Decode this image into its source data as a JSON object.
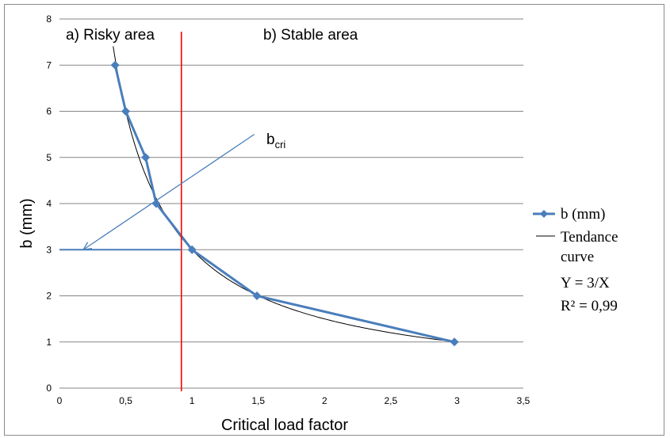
{
  "chart_data": {
    "type": "line",
    "xlabel": "Critical load factor",
    "ylabel": "b (mm)",
    "xlim": [
      0,
      3.5
    ],
    "ylim": [
      0,
      8
    ],
    "x_ticks": [
      "0",
      "0,5",
      "1",
      "1,5",
      "2",
      "2,5",
      "3",
      "3,5"
    ],
    "y_ticks": [
      "0",
      "1",
      "2",
      "3",
      "4",
      "5",
      "6",
      "7",
      "8"
    ],
    "grid": "horizontal",
    "series": [
      {
        "name": "b (mm)",
        "color": "#4a7ebb",
        "marker": "diamond",
        "points": [
          {
            "x": 0.42,
            "y": 7
          },
          {
            "x": 0.5,
            "y": 6
          },
          {
            "x": 0.65,
            "y": 5
          },
          {
            "x": 0.73,
            "y": 4
          },
          {
            "x": 1.0,
            "y": 3
          },
          {
            "x": 1.49,
            "y": 2
          },
          {
            "x": 2.98,
            "y": 1
          }
        ]
      }
    ],
    "trend": {
      "name": "Tendance curve",
      "equation": "Y = 3/X",
      "r2": "R² = 0,99",
      "color": "#000000"
    },
    "critical_line": {
      "x": 0.92,
      "color": "#ff0000"
    },
    "bcri_arrow": {
      "from": [
        1.47,
        5.5
      ],
      "to": [
        0.18,
        3.0
      ],
      "horizontal_y": 3,
      "color": "#4a7ebb"
    },
    "annotations": {
      "risky": "a) Risky area",
      "stable": "b) Stable area",
      "bcri_base": "b",
      "bcri_sub": "cri"
    },
    "legend_position": "right"
  }
}
